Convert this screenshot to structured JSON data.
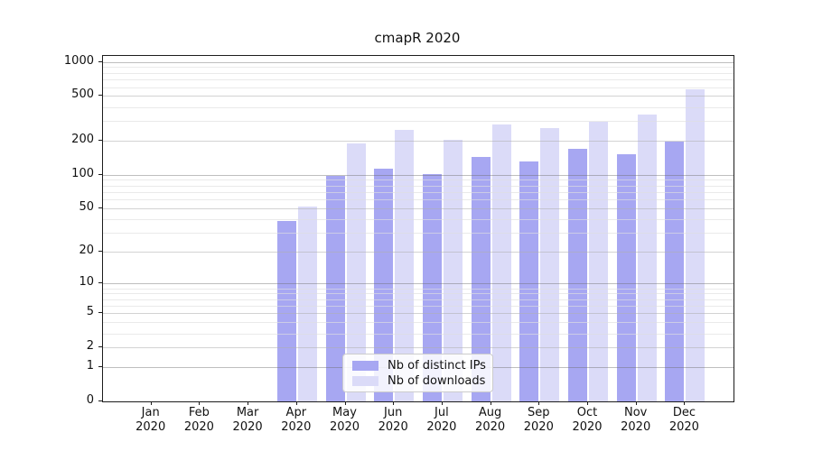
{
  "title": "cmapR 2020",
  "legend": {
    "items": [
      {
        "label": "Nb of distinct IPs",
        "color": "#a7a7f2"
      },
      {
        "label": "Nb of downloads",
        "color": "#dbdbf8"
      }
    ]
  },
  "chart_data": {
    "type": "bar",
    "title": "cmapR 2020",
    "categories": [
      "Jan 2020",
      "Feb 2020",
      "Mar 2020",
      "Apr 2020",
      "May 2020",
      "Jun 2020",
      "Jul 2020",
      "Aug 2020",
      "Sep 2020",
      "Oct 2020",
      "Nov 2020",
      "Dec 2020"
    ],
    "month_labels": [
      "Jan",
      "Feb",
      "Mar",
      "Apr",
      "May",
      "Jun",
      "Jul",
      "Aug",
      "Sep",
      "Oct",
      "Nov",
      "Dec"
    ],
    "year_label": "2020",
    "series": [
      {
        "name": "Nb of distinct IPs",
        "color": "#a7a7f2",
        "values": [
          0,
          0,
          0,
          38,
          97,
          113,
          102,
          143,
          131,
          170,
          152,
          198
        ]
      },
      {
        "name": "Nb of downloads",
        "color": "#dbdbf8",
        "values": [
          0,
          0,
          0,
          52,
          189,
          252,
          206,
          278,
          261,
          296,
          343,
          570
        ]
      }
    ],
    "yscale": "log10(value+1)",
    "yticks": [
      0,
      1,
      2,
      5,
      10,
      20,
      50,
      100,
      200,
      500,
      1000
    ],
    "ylim": [
      0,
      1000
    ],
    "grid": "horizontal",
    "legend_position": "lower center",
    "xlabel": "",
    "ylabel": ""
  }
}
